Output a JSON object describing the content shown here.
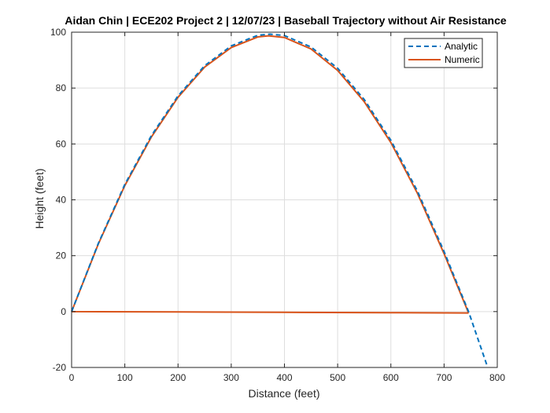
{
  "chart_data": {
    "type": "line",
    "title": "Aidan Chin | ECE202 Project 2 | 12/07/23 | Baseball Trajectory without Air Resistance",
    "xlabel": "Distance (feet)",
    "ylabel": "Height (feet)",
    "xlim": [
      0,
      800
    ],
    "ylim": [
      -20,
      100
    ],
    "xticks": [
      0,
      100,
      200,
      300,
      400,
      500,
      600,
      700,
      800
    ],
    "yticks": [
      -20,
      0,
      20,
      40,
      60,
      80,
      100
    ],
    "grid": true,
    "legend_position": "top-right",
    "series": [
      {
        "name": "Analytic",
        "style": "dashed",
        "color": "#0072BD",
        "x": [
          0,
          50,
          100,
          150,
          200,
          250,
          300,
          350,
          373,
          400,
          450,
          500,
          550,
          600,
          650,
          700,
          746,
          782
        ],
        "y": [
          0,
          24.3,
          45.5,
          63.0,
          77.2,
          88.0,
          95.1,
          98.9,
          99.3,
          98.8,
          94.7,
          87.1,
          75.9,
          61.3,
          43.1,
          21.5,
          0,
          -20
        ]
      },
      {
        "name": "Numeric",
        "style": "solid",
        "color": "#D95319",
        "x": [
          0,
          50,
          100,
          150,
          200,
          250,
          300,
          350,
          370,
          400,
          450,
          500,
          550,
          600,
          650,
          700,
          745,
          745,
          600,
          400,
          200,
          0
        ],
        "y": [
          0,
          24.1,
          45.1,
          62.5,
          76.7,
          87.5,
          94.5,
          98.3,
          98.7,
          98.1,
          94.0,
          86.3,
          75.1,
          60.5,
          42.3,
          20.7,
          0,
          -0.5,
          -0.4,
          -0.27,
          -0.13,
          0
        ]
      }
    ]
  }
}
